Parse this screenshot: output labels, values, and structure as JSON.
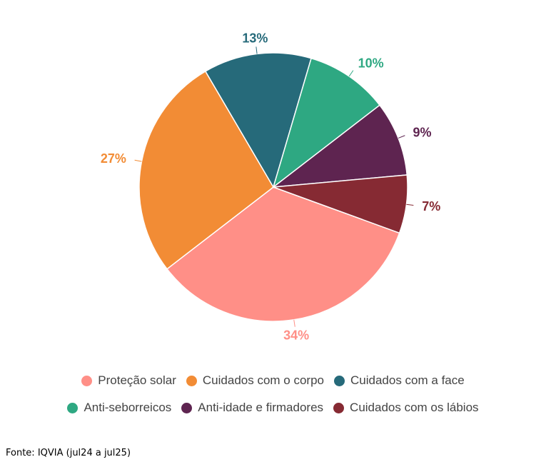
{
  "chart_data": {
    "type": "pie",
    "start_angle_deg_clockwise_from_top": 110,
    "direction": "clockwise",
    "slices": [
      {
        "name": "Proteção solar",
        "value": 34,
        "label": "34%",
        "color": "#FF8F87"
      },
      {
        "name": "Cuidados com o corpo",
        "value": 27,
        "label": "27%",
        "color": "#F28C35"
      },
      {
        "name": "Cuidados com a face",
        "value": 13,
        "label": "13%",
        "color": "#266A7A"
      },
      {
        "name": "Anti-seborreicos",
        "value": 10,
        "label": "10%",
        "color": "#2EA882"
      },
      {
        "name": "Anti-idade e firmadores",
        "value": 9,
        "label": "9%",
        "color": "#5E2450"
      },
      {
        "name": "Cuidados com os lábios",
        "value": 7,
        "label": "7%",
        "color": "#862A33"
      }
    ],
    "legend_position": "bottom"
  },
  "source": "Fonte: IQVIA (jul24 a jul25)"
}
